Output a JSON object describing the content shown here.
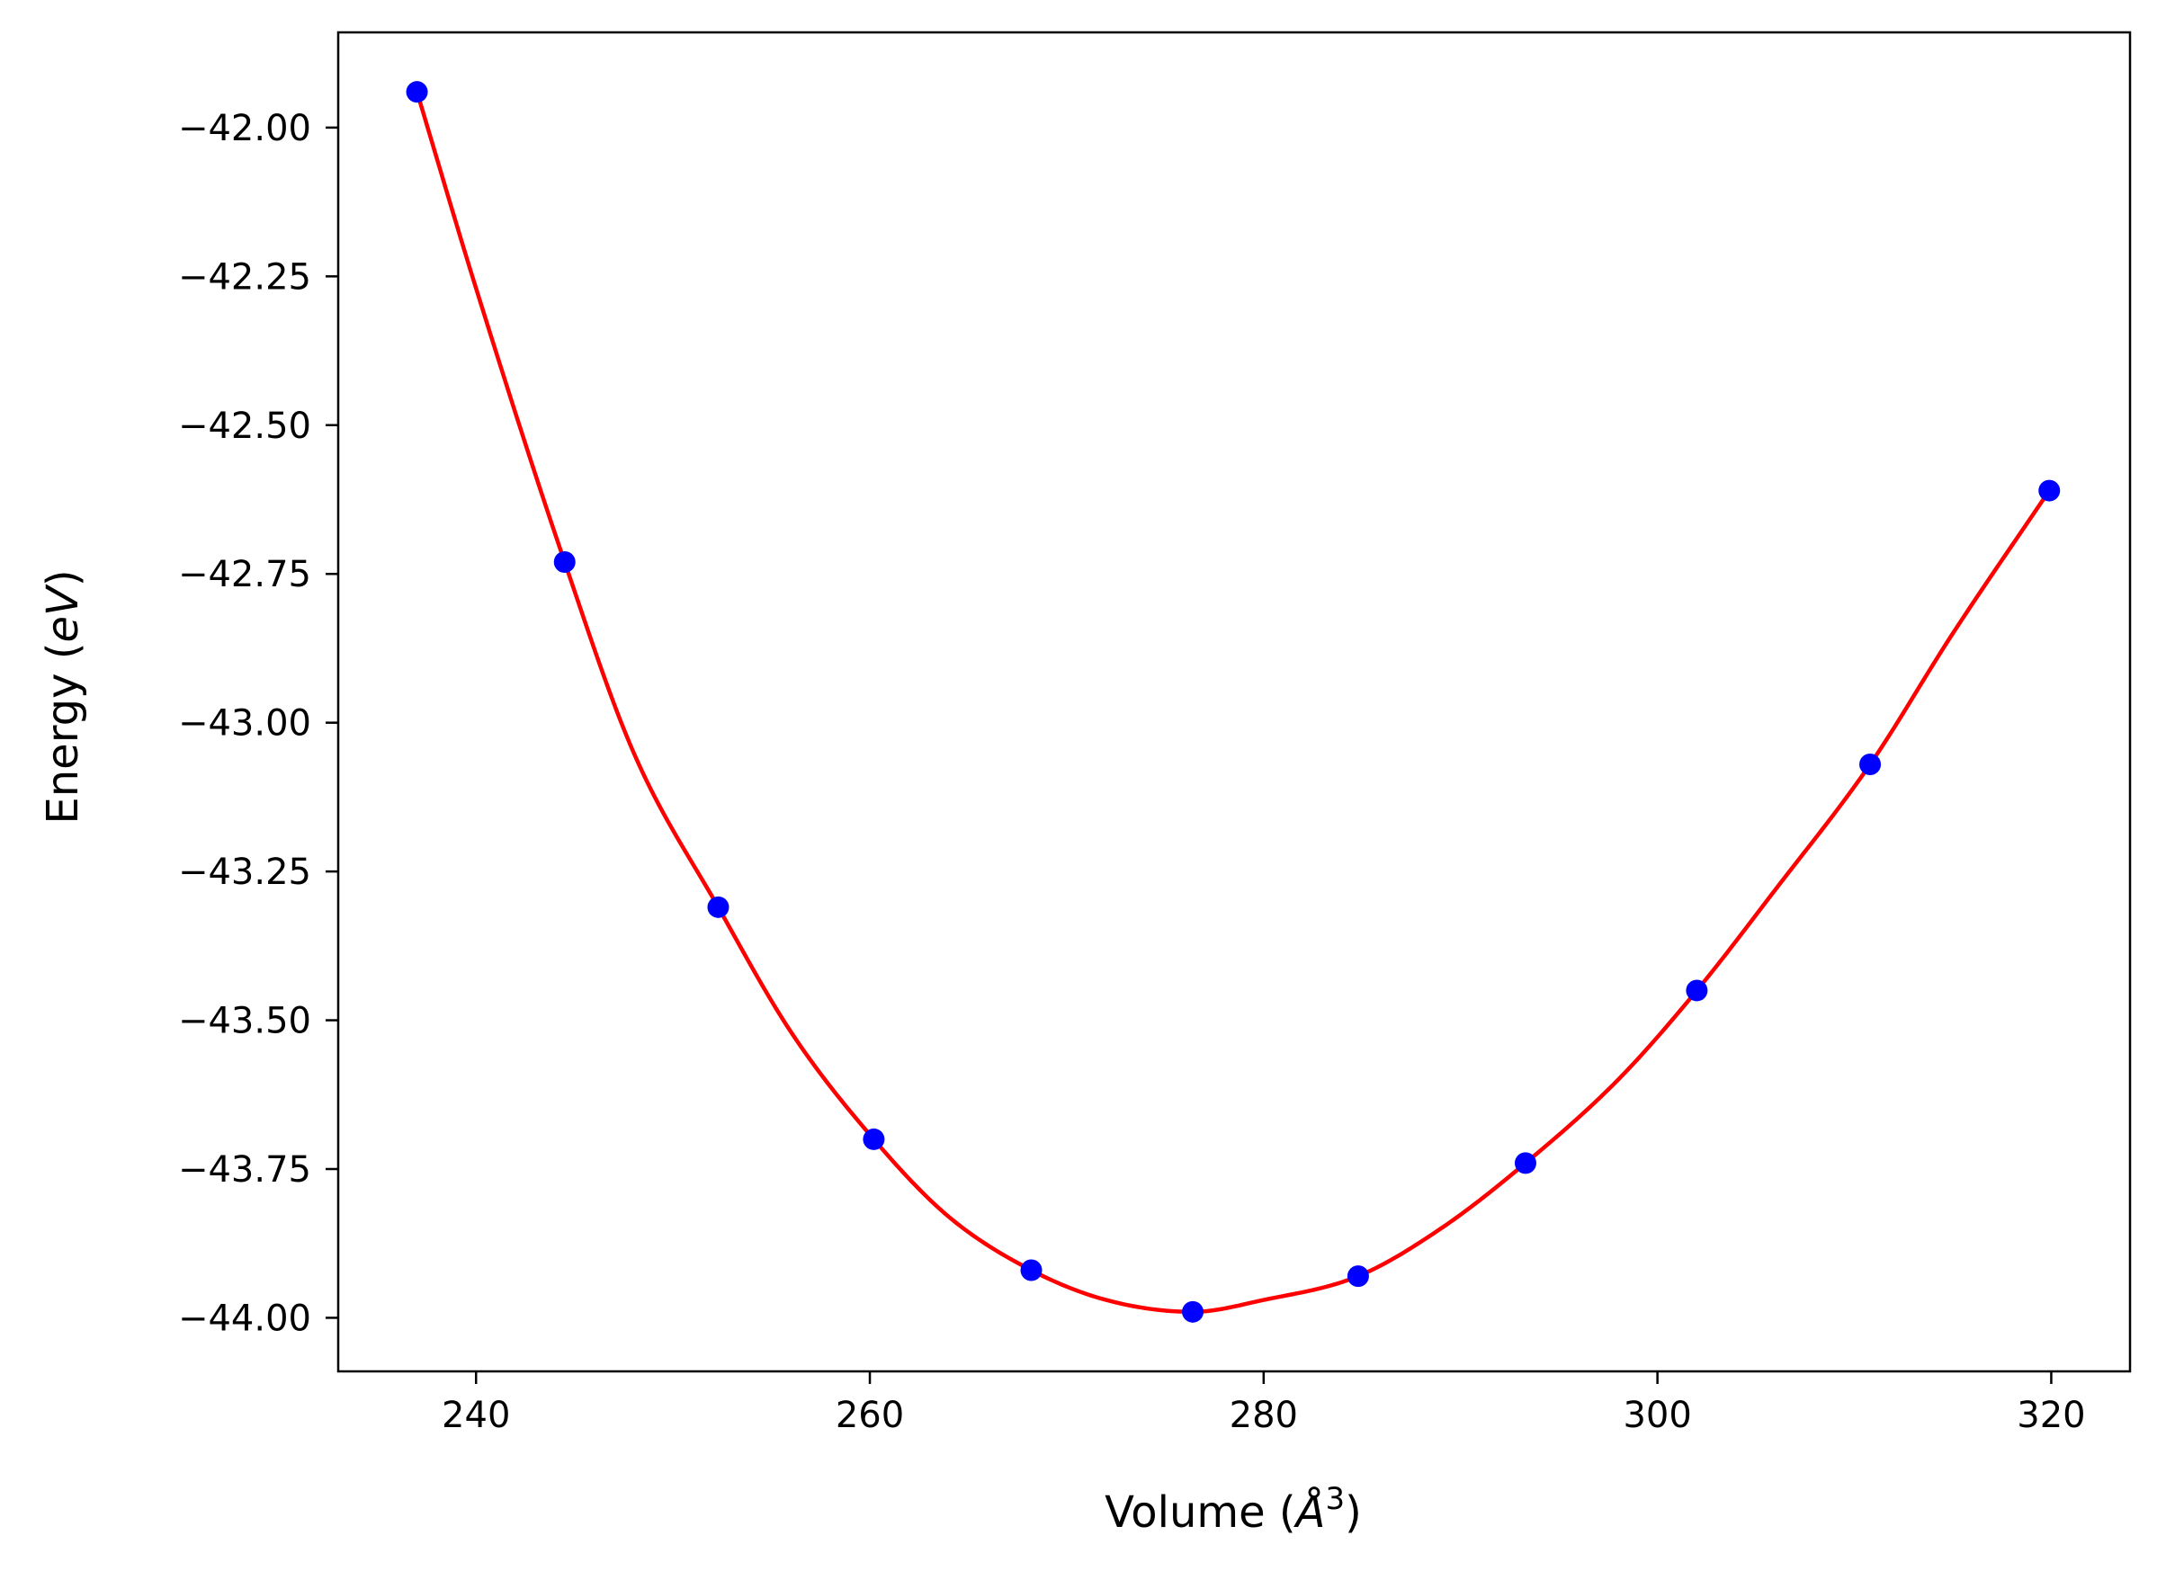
{
  "chart_data": {
    "type": "scatter",
    "title": "",
    "xlabel": "Volume (Å³)",
    "xlabel_parts": {
      "prefix": "Volume (",
      "symbol": "Å",
      "sup": "3",
      "suffix": ")"
    },
    "ylabel": "Energy (eV)",
    "ylabel_parts": {
      "prefix": "Energy (",
      "italic": "eV",
      "suffix": ")"
    },
    "xlim": [
      233,
      324
    ],
    "ylim": [
      -44.09,
      -41.84
    ],
    "xticks": [
      240,
      260,
      280,
      300,
      320
    ],
    "xtick_labels": [
      "240",
      "260",
      "280",
      "300",
      "320"
    ],
    "yticks": [
      -42.0,
      -42.25,
      -42.5,
      -42.75,
      -43.0,
      -43.25,
      -43.5,
      -43.75,
      -44.0
    ],
    "ytick_labels": [
      "−42.00",
      "−42.25",
      "−42.50",
      "−42.75",
      "−43.00",
      "−43.25",
      "−43.50",
      "−43.75",
      "−44.00"
    ],
    "grid": false,
    "series": [
      {
        "kind": "points",
        "color": "#0000ff",
        "x": [
          237.0,
          244.5,
          252.3,
          260.2,
          268.2,
          276.4,
          284.8,
          293.3,
          302.0,
          310.8,
          319.9
        ],
        "y": [
          -41.94,
          -42.73,
          -43.31,
          -43.7,
          -43.92,
          -43.99,
          -43.93,
          -43.74,
          -43.45,
          -43.07,
          -42.61
        ]
      },
      {
        "kind": "fit-curve",
        "color": "#ff0000",
        "x": [
          237.0,
          240.0,
          244.5,
          248.0,
          252.3,
          256.0,
          260.2,
          264.0,
          268.2,
          272.0,
          276.4,
          280.0,
          284.8,
          289.0,
          293.3,
          298.0,
          302.0,
          306.0,
          310.8,
          315.0,
          319.9
        ],
        "y": [
          -41.94,
          -42.27,
          -42.73,
          -43.05,
          -43.31,
          -43.52,
          -43.7,
          -43.83,
          -43.92,
          -43.97,
          -43.99,
          -43.97,
          -43.93,
          -43.85,
          -43.74,
          -43.6,
          -43.45,
          -43.28,
          -43.07,
          -42.85,
          -42.61
        ]
      }
    ]
  },
  "colors": {
    "points": "#0000ff",
    "curve": "#ff0000",
    "axes": "#000000",
    "background": "#ffffff"
  }
}
